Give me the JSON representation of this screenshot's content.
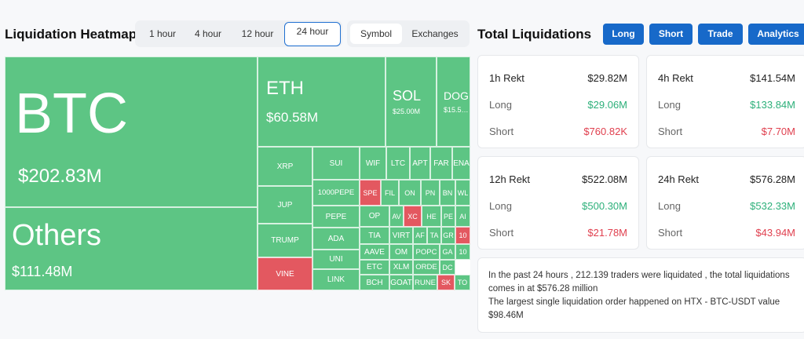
{
  "heatmap": {
    "title": "Liquidation Heatmap",
    "time_tabs": [
      "1 hour",
      "4 hour",
      "12 hour",
      "24 hour"
    ],
    "active_time_tab": "24 hour",
    "view_tabs": [
      "Symbol",
      "Exchanges"
    ],
    "active_view_tab": "Symbol",
    "tiles": [
      {
        "symbol": "BTC",
        "value": "$202.83M"
      },
      {
        "symbol": "Others",
        "value": "$111.48M"
      },
      {
        "symbol": "ETH",
        "value": "$60.58M"
      },
      {
        "symbol": "SOL",
        "value": "$25.00M"
      },
      {
        "symbol": "DOG",
        "value": "$15.5…"
      },
      {
        "symbol": "XRP"
      },
      {
        "symbol": "JUP"
      },
      {
        "symbol": "TRUMP"
      },
      {
        "symbol": "VINE",
        "dominant": "short"
      },
      {
        "symbol": "SUI"
      },
      {
        "symbol": "1000PEPE"
      },
      {
        "symbol": "PEPE"
      },
      {
        "symbol": "ADA"
      },
      {
        "symbol": "UNI"
      },
      {
        "symbol": "LINK"
      },
      {
        "symbol": "WIF"
      },
      {
        "symbol": "LTC"
      },
      {
        "symbol": "APT"
      },
      {
        "symbol": "FAR"
      },
      {
        "symbol": "ENA"
      },
      {
        "symbol": "SPE",
        "dominant": "short"
      },
      {
        "symbol": "FIL"
      },
      {
        "symbol": "ON"
      },
      {
        "symbol": "PN"
      },
      {
        "symbol": "BN"
      },
      {
        "symbol": "WL"
      },
      {
        "symbol": "OP"
      },
      {
        "symbol": "AV"
      },
      {
        "symbol": "XC",
        "dominant": "short"
      },
      {
        "symbol": "HE"
      },
      {
        "symbol": "PE"
      },
      {
        "symbol": "AI"
      },
      {
        "symbol": "TIA"
      },
      {
        "symbol": "VIRT"
      },
      {
        "symbol": "AF"
      },
      {
        "symbol": "TA"
      },
      {
        "symbol": "GR"
      },
      {
        "symbol": "10",
        "dominant": "short"
      },
      {
        "symbol": "AAVE"
      },
      {
        "symbol": "OM"
      },
      {
        "symbol": "POPC"
      },
      {
        "symbol": "GA"
      },
      {
        "symbol": "10"
      },
      {
        "symbol": "ETC"
      },
      {
        "symbol": "XLM"
      },
      {
        "symbol": "ORDE"
      },
      {
        "symbol": "DC"
      },
      {
        "symbol": "BCH"
      },
      {
        "symbol": "GOAT"
      },
      {
        "symbol": "RUNE"
      },
      {
        "symbol": "SK",
        "dominant": "short"
      },
      {
        "symbol": "TO"
      }
    ],
    "colors": {
      "long_dominant": "#5dc584",
      "short_dominant": "#e35860"
    }
  },
  "totals": {
    "title": "Total Liquidations",
    "buttons": [
      "Long",
      "Short",
      "Trade",
      "Analytics"
    ],
    "cards": [
      {
        "label": "1h Rekt",
        "total": "$29.82M",
        "long_label": "Long",
        "long": "$29.06M",
        "short_label": "Short",
        "short": "$760.82K"
      },
      {
        "label": "4h Rekt",
        "total": "$141.54M",
        "long_label": "Long",
        "long": "$133.84M",
        "short_label": "Short",
        "short": "$7.70M"
      },
      {
        "label": "12h Rekt",
        "total": "$522.08M",
        "long_label": "Long",
        "long": "$500.30M",
        "short_label": "Short",
        "short": "$21.78M"
      },
      {
        "label": "24h Rekt",
        "total": "$576.28M",
        "long_label": "Long",
        "long": "$532.33M",
        "short_label": "Short",
        "short": "$43.94M"
      }
    ],
    "summary": [
      "In the past 24 hours , 212.139 traders were liquidated , the total liquidations comes in at $576.28 million",
      "The largest single liquidation order happened on HTX - BTC-USDT value $98.46M"
    ],
    "colors": {
      "long": "#2db07a",
      "short": "#e0404f",
      "accent": "#1769c9"
    }
  }
}
